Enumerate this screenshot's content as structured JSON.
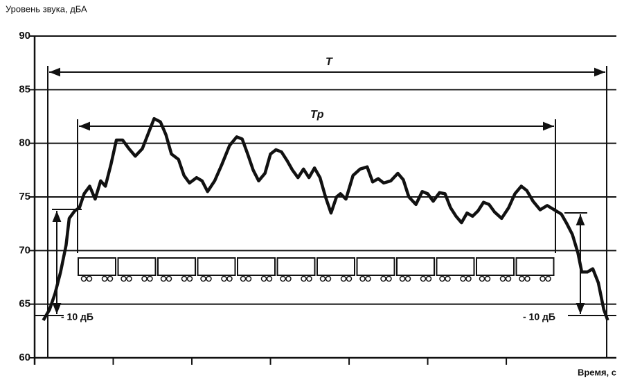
{
  "chart_data": {
    "type": "line",
    "y_label": "Уровень звука, дБА",
    "x_label": "Время, с",
    "annotations": {
      "T": "T",
      "Tp": "Tp",
      "left_drop": "- 10 дБ",
      "right_drop": "- 10 дБ"
    },
    "ylim": [
      60,
      90
    ],
    "yticks": [
      60,
      65,
      70,
      75,
      80,
      85,
      90
    ],
    "grid": true,
    "xlim": [
      0,
      74
    ],
    "xticks": [
      10,
      20,
      30,
      40,
      50,
      60
    ],
    "series": [
      {
        "name": "Уровень звука",
        "color": "#111111",
        "x": [
          1.1,
          1.9,
          2.6,
          3.3,
          4.0,
          4.4,
          5.1,
          5.7,
          6.3,
          7.0,
          7.7,
          8.4,
          9.0,
          9.7,
          10.4,
          11.2,
          12.0,
          12.8,
          13.7,
          14.5,
          15.2,
          16.0,
          16.7,
          17.4,
          18.3,
          19.0,
          19.7,
          20.6,
          21.3,
          22.0,
          22.9,
          23.8,
          24.8,
          25.7,
          26.4,
          27.1,
          27.8,
          28.5,
          29.3,
          30.0,
          30.7,
          31.4,
          32.1,
          32.8,
          33.5,
          34.2,
          34.9,
          35.6,
          36.3,
          37.0,
          37.7,
          38.4,
          38.9,
          39.6,
          40.5,
          41.4,
          42.3,
          43.0,
          43.7,
          44.4,
          45.3,
          46.2,
          46.9,
          47.6,
          48.5,
          49.3,
          50.0,
          50.7,
          51.5,
          52.2,
          52.9,
          53.6,
          54.3,
          55.0,
          55.7,
          56.4,
          57.1,
          57.8,
          58.5,
          59.4,
          60.3,
          61.1,
          61.9,
          62.6,
          63.4,
          64.3,
          65.2,
          66.1,
          67.0,
          67.7,
          68.4,
          69.1,
          69.6,
          70.3,
          71.0,
          71.7,
          72.4,
          72.9
        ],
        "values": [
          63.5,
          64.5,
          66,
          68,
          70.5,
          73,
          73.7,
          74,
          75.3,
          76,
          74.8,
          76.5,
          76,
          78,
          80.3,
          80.3,
          79.5,
          78.8,
          79.5,
          81,
          82.3,
          82,
          80.8,
          79,
          78.5,
          77,
          76.3,
          76.8,
          76.5,
          75.5,
          76.5,
          78,
          79.8,
          80.6,
          80.4,
          79,
          77.5,
          76.5,
          77.2,
          79,
          79.4,
          79.2,
          78.4,
          77.5,
          76.8,
          77.6,
          76.8,
          77.7,
          76.8,
          75,
          73.5,
          75,
          75.3,
          74.8,
          77,
          77.6,
          77.8,
          76.4,
          76.7,
          76.3,
          76.5,
          77.2,
          76.6,
          75,
          74.3,
          75.5,
          75.3,
          74.6,
          75.4,
          75.3,
          74,
          73.2,
          72.6,
          73.5,
          73.2,
          73.7,
          74.5,
          74.3,
          73.6,
          73,
          74,
          75.3,
          76,
          75.6,
          74.6,
          73.8,
          74.2,
          73.8,
          73.4,
          72.5,
          71.5,
          69.8,
          68,
          68,
          68.3,
          67,
          64.5,
          63.5
        ]
      }
    ]
  }
}
